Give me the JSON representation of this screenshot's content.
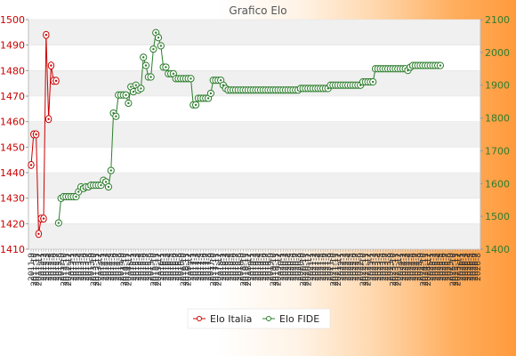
{
  "chart_data": {
    "type": "line",
    "title": "Grafico Elo",
    "y_left": {
      "ylim": [
        1410,
        1500
      ],
      "ticks": [
        1410,
        1420,
        1430,
        1440,
        1450,
        1460,
        1470,
        1480,
        1490,
        1500
      ],
      "color": "#cc0000"
    },
    "y_right": {
      "ylim": [
        1400,
        2100
      ],
      "ticks": [
        1400,
        1500,
        1600,
        1700,
        1800,
        1900,
        2000,
        2100
      ],
      "color": "#2d7d2d"
    },
    "grid": "horizontal bands",
    "legend": "bottom-center",
    "num_points": 180,
    "x_tick_labels": [
      "2011-9",
      "2011-10",
      "2011-11",
      "2011-12",
      "2012-1",
      "2012-2",
      "2012-3",
      "2012-4",
      "2012-5",
      "2012-6",
      "2012-7",
      "2012-8",
      "2012-9",
      "2012-10",
      "2012-11",
      "2012-12",
      "2013-1",
      "2013-2",
      "2013-3",
      "2013-4",
      "2013-5",
      "2013-6",
      "2013-7",
      "2013-8",
      "2013-9",
      "2013-10",
      "2013-11",
      "2013-12",
      "2014-1",
      "2014-2",
      "2014-3",
      "2014-4",
      "2014-5",
      "2014-6",
      "2014-7",
      "2014-8",
      "2014-9",
      "2014-10",
      "2014-11",
      "2014-12",
      "2015-1",
      "2015-2",
      "2015-3",
      "2015-4",
      "2015-5",
      "2015-6",
      "2015-7",
      "2015-8",
      "2015-9",
      "2015-10",
      "2015-11",
      "2015-12",
      "2016-1",
      "2016-2",
      "2016-3",
      "2016-4",
      "2016-5",
      "2016-6",
      "2016-7",
      "2016-8",
      "2016-9",
      "2016-10",
      "2016-11",
      "2016-12",
      "2017-1",
      "2017-2",
      "2017-3",
      "2017-4",
      "2017-5",
      "2017-6",
      "2017-7",
      "2017-8",
      "2017-9",
      "2017-10",
      "2017-11",
      "2017-12",
      "2018-1",
      "2018-2",
      "2018-3",
      "2018-4",
      "2018-5",
      "2018-6",
      "2018-7",
      "2018-8",
      "2018-9",
      "2018-10",
      "2018-11",
      "2018-12",
      "2019-1",
      "2019-2",
      "2019-3",
      "2019-4",
      "2019-5",
      "2019-6",
      "2019-7",
      "2019-8",
      "2019-9",
      "2019-10",
      "2019-11",
      "2019-12",
      "2020-1",
      "2020-2",
      "2020-3",
      "2020-4",
      "2020-5",
      "2020-6",
      "2020-7",
      "2020-8",
      "2020-9",
      "2020-10",
      "2020-11",
      "2020-12",
      "2021-1",
      "2021-2",
      "2021-3",
      "2021-4",
      "2021-5",
      "2021-6",
      "2021-7",
      "2021-8",
      "2021-9",
      "2021-10",
      "2021-11",
      "2021-12",
      "2022-1",
      "2022-2",
      "2022-3",
      "2022-4",
      "2022-5",
      "2022-6",
      "2022-7",
      "2022-8",
      "2022-9",
      "2022-10",
      "2022-11",
      "2022-12",
      "2023-1",
      "2023-2",
      "2023-3",
      "2023-4",
      "2023-5",
      "2023-6",
      "2023-7",
      "2023-8",
      "2023-9",
      "2023-10",
      "2023-11",
      "2023-12",
      "2024-1",
      "2024-2",
      "2024-3",
      "2024-4",
      "2024-5",
      "2024-6",
      "2024-7",
      "2024-8",
      "2024-9",
      "2024-10",
      "2024-11",
      "2024-12",
      "2025-1",
      "2025-2",
      "2025-3",
      "2025-4",
      "2025-5",
      "2025-6",
      "2025-7",
      "2025-8",
      "2025-9",
      "2025-10",
      "2025-11",
      "2025-12",
      "2026-1",
      "2026-2",
      "2026-3",
      "2026-4",
      "2026-5",
      "2026-6",
      "2026-7",
      "2026-8"
    ],
    "series": [
      {
        "name": "Elo Italia",
        "axis": "left",
        "color": "#cc0000",
        "marker": "open-diamond",
        "points": [
          {
            "x": 0,
            "y": 1443
          },
          {
            "x": 1,
            "y": 1455
          },
          {
            "x": 2,
            "y": 1455
          },
          {
            "x": 3,
            "y": 1416
          },
          {
            "x": 4,
            "y": 1422
          },
          {
            "x": 5,
            "y": 1422
          },
          {
            "x": 6,
            "y": 1494
          },
          {
            "x": 7,
            "y": 1461
          },
          {
            "x": 8,
            "y": 1482
          },
          {
            "x": 9,
            "y": 1476
          },
          {
            "x": 10,
            "y": 1476
          }
        ]
      },
      {
        "name": "Elo FIDE",
        "axis": "right",
        "color": "#2d7d2d",
        "marker": "open-circle",
        "points": [
          {
            "x": 11,
            "y": 1480
          },
          {
            "x": 12,
            "y": 1555
          },
          {
            "x": 13,
            "y": 1560
          },
          {
            "x": 14,
            "y": 1560
          },
          {
            "x": 15,
            "y": 1560
          },
          {
            "x": 16,
            "y": 1560
          },
          {
            "x": 17,
            "y": 1560
          },
          {
            "x": 18,
            "y": 1560
          },
          {
            "x": 19,
            "y": 1575
          },
          {
            "x": 20,
            "y": 1590
          },
          {
            "x": 21,
            "y": 1585
          },
          {
            "x": 22,
            "y": 1590
          },
          {
            "x": 23,
            "y": 1590
          },
          {
            "x": 24,
            "y": 1595
          },
          {
            "x": 25,
            "y": 1595
          },
          {
            "x": 26,
            "y": 1595
          },
          {
            "x": 27,
            "y": 1595
          },
          {
            "x": 28,
            "y": 1595
          },
          {
            "x": 29,
            "y": 1610
          },
          {
            "x": 30,
            "y": 1605
          },
          {
            "x": 31,
            "y": 1590
          },
          {
            "x": 32,
            "y": 1640
          },
          {
            "x": 33,
            "y": 1815
          },
          {
            "x": 34,
            "y": 1805
          },
          {
            "x": 35,
            "y": 1870
          },
          {
            "x": 36,
            "y": 1870
          },
          {
            "x": 37,
            "y": 1870
          },
          {
            "x": 38,
            "y": 1870
          },
          {
            "x": 39,
            "y": 1845
          },
          {
            "x": 40,
            "y": 1895
          },
          {
            "x": 41,
            "y": 1880
          },
          {
            "x": 42,
            "y": 1900
          },
          {
            "x": 43,
            "y": 1885
          },
          {
            "x": 44,
            "y": 1890
          },
          {
            "x": 45,
            "y": 1985
          },
          {
            "x": 46,
            "y": 1960
          },
          {
            "x": 47,
            "y": 1925
          },
          {
            "x": 48,
            "y": 1925
          },
          {
            "x": 49,
            "y": 2010
          },
          {
            "x": 50,
            "y": 2060
          },
          {
            "x": 51,
            "y": 2045
          },
          {
            "x": 52,
            "y": 2020
          },
          {
            "x": 53,
            "y": 1955
          },
          {
            "x": 54,
            "y": 1955
          },
          {
            "x": 55,
            "y": 1935
          },
          {
            "x": 56,
            "y": 1935
          },
          {
            "x": 57,
            "y": 1935
          },
          {
            "x": 58,
            "y": 1920
          },
          {
            "x": 59,
            "y": 1920
          },
          {
            "x": 60,
            "y": 1920
          },
          {
            "x": 61,
            "y": 1920
          },
          {
            "x": 62,
            "y": 1920
          },
          {
            "x": 63,
            "y": 1920
          },
          {
            "x": 64,
            "y": 1920
          },
          {
            "x": 65,
            "y": 1840
          },
          {
            "x": 66,
            "y": 1840
          },
          {
            "x": 67,
            "y": 1860
          },
          {
            "x": 68,
            "y": 1860
          },
          {
            "x": 69,
            "y": 1860
          },
          {
            "x": 70,
            "y": 1860
          },
          {
            "x": 71,
            "y": 1860
          },
          {
            "x": 72,
            "y": 1875
          },
          {
            "x": 73,
            "y": 1915
          },
          {
            "x": 74,
            "y": 1915
          },
          {
            "x": 75,
            "y": 1915
          },
          {
            "x": 76,
            "y": 1915
          },
          {
            "x": 77,
            "y": 1900
          },
          {
            "x": 78,
            "y": 1890
          },
          {
            "x": 79,
            "y": 1885
          },
          {
            "x": 80,
            "y": 1885
          },
          {
            "x": 81,
            "y": 1885
          },
          {
            "x": 82,
            "y": 1885
          },
          {
            "x": 83,
            "y": 1885
          },
          {
            "x": 84,
            "y": 1885
          },
          {
            "x": 85,
            "y": 1885
          },
          {
            "x": 86,
            "y": 1885
          },
          {
            "x": 87,
            "y": 1885
          },
          {
            "x": 88,
            "y": 1885
          },
          {
            "x": 89,
            "y": 1885
          },
          {
            "x": 90,
            "y": 1885
          },
          {
            "x": 91,
            "y": 1885
          },
          {
            "x": 92,
            "y": 1885
          },
          {
            "x": 93,
            "y": 1885
          },
          {
            "x": 94,
            "y": 1885
          },
          {
            "x": 95,
            "y": 1885
          },
          {
            "x": 96,
            "y": 1885
          },
          {
            "x": 97,
            "y": 1885
          },
          {
            "x": 98,
            "y": 1885
          },
          {
            "x": 99,
            "y": 1885
          },
          {
            "x": 100,
            "y": 1885
          },
          {
            "x": 101,
            "y": 1885
          },
          {
            "x": 102,
            "y": 1885
          },
          {
            "x": 103,
            "y": 1885
          },
          {
            "x": 104,
            "y": 1885
          },
          {
            "x": 105,
            "y": 1885
          },
          {
            "x": 106,
            "y": 1885
          },
          {
            "x": 107,
            "y": 1885
          },
          {
            "x": 108,
            "y": 1890
          },
          {
            "x": 109,
            "y": 1890
          },
          {
            "x": 110,
            "y": 1890
          },
          {
            "x": 111,
            "y": 1890
          },
          {
            "x": 112,
            "y": 1890
          },
          {
            "x": 113,
            "y": 1890
          },
          {
            "x": 114,
            "y": 1890
          },
          {
            "x": 115,
            "y": 1890
          },
          {
            "x": 116,
            "y": 1890
          },
          {
            "x": 117,
            "y": 1890
          },
          {
            "x": 118,
            "y": 1890
          },
          {
            "x": 119,
            "y": 1890
          },
          {
            "x": 120,
            "y": 1900
          },
          {
            "x": 121,
            "y": 1900
          },
          {
            "x": 122,
            "y": 1900
          },
          {
            "x": 123,
            "y": 1900
          },
          {
            "x": 124,
            "y": 1900
          },
          {
            "x": 125,
            "y": 1900
          },
          {
            "x": 126,
            "y": 1900
          },
          {
            "x": 127,
            "y": 1900
          },
          {
            "x": 128,
            "y": 1900
          },
          {
            "x": 129,
            "y": 1900
          },
          {
            "x": 130,
            "y": 1900
          },
          {
            "x": 131,
            "y": 1900
          },
          {
            "x": 132,
            "y": 1900
          },
          {
            "x": 133,
            "y": 1910
          },
          {
            "x": 134,
            "y": 1910
          },
          {
            "x": 135,
            "y": 1910
          },
          {
            "x": 136,
            "y": 1910
          },
          {
            "x": 137,
            "y": 1910
          },
          {
            "x": 138,
            "y": 1950
          },
          {
            "x": 139,
            "y": 1950
          },
          {
            "x": 140,
            "y": 1950
          },
          {
            "x": 141,
            "y": 1950
          },
          {
            "x": 142,
            "y": 1950
          },
          {
            "x": 143,
            "y": 1950
          },
          {
            "x": 144,
            "y": 1950
          },
          {
            "x": 145,
            "y": 1950
          },
          {
            "x": 146,
            "y": 1950
          },
          {
            "x": 147,
            "y": 1950
          },
          {
            "x": 148,
            "y": 1950
          },
          {
            "x": 149,
            "y": 1950
          },
          {
            "x": 150,
            "y": 1950
          },
          {
            "x": 151,
            "y": 1945
          },
          {
            "x": 152,
            "y": 1955
          },
          {
            "x": 153,
            "y": 1960
          },
          {
            "x": 154,
            "y": 1960
          },
          {
            "x": 155,
            "y": 1960
          },
          {
            "x": 156,
            "y": 1960
          },
          {
            "x": 157,
            "y": 1960
          },
          {
            "x": 158,
            "y": 1960
          },
          {
            "x": 159,
            "y": 1960
          },
          {
            "x": 160,
            "y": 1960
          },
          {
            "x": 161,
            "y": 1960
          },
          {
            "x": 162,
            "y": 1960
          },
          {
            "x": 163,
            "y": 1960
          },
          {
            "x": 164,
            "y": 1960
          }
        ]
      }
    ]
  }
}
